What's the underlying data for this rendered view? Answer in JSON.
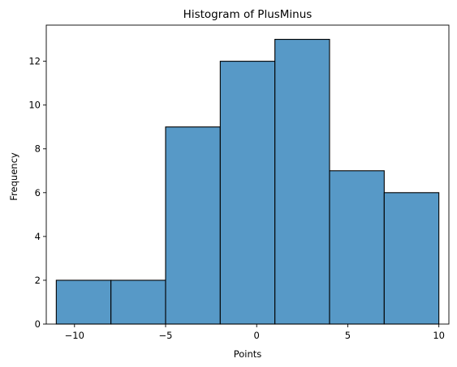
{
  "chart_data": {
    "type": "bar",
    "title": "Histogram of PlusMinus",
    "xlabel": "Points",
    "ylabel": "Frequency",
    "bins": [
      {
        "start": -11,
        "end": -8,
        "count": 2
      },
      {
        "start": -8,
        "end": -5,
        "count": 2
      },
      {
        "start": -5,
        "end": -2,
        "count": 9
      },
      {
        "start": -2,
        "end": 1,
        "count": 12
      },
      {
        "start": 1,
        "end": 4,
        "count": 13
      },
      {
        "start": 4,
        "end": 7,
        "count": 7
      },
      {
        "start": 7,
        "end": 10,
        "count": 6
      }
    ],
    "xlim": [
      -11.55,
      10.55
    ],
    "ylim": [
      0,
      13.65
    ],
    "xticks": [
      -10,
      -5,
      0,
      5,
      10
    ],
    "xtick_labels": [
      "−10",
      "−5",
      "0",
      "5",
      "10"
    ],
    "yticks": [
      0,
      2,
      4,
      6,
      8,
      10,
      12
    ],
    "ytick_labels": [
      "0",
      "2",
      "4",
      "6",
      "8",
      "10",
      "12"
    ],
    "grid": false,
    "bar_color": "#5799c7",
    "edge_color": "#000000"
  }
}
